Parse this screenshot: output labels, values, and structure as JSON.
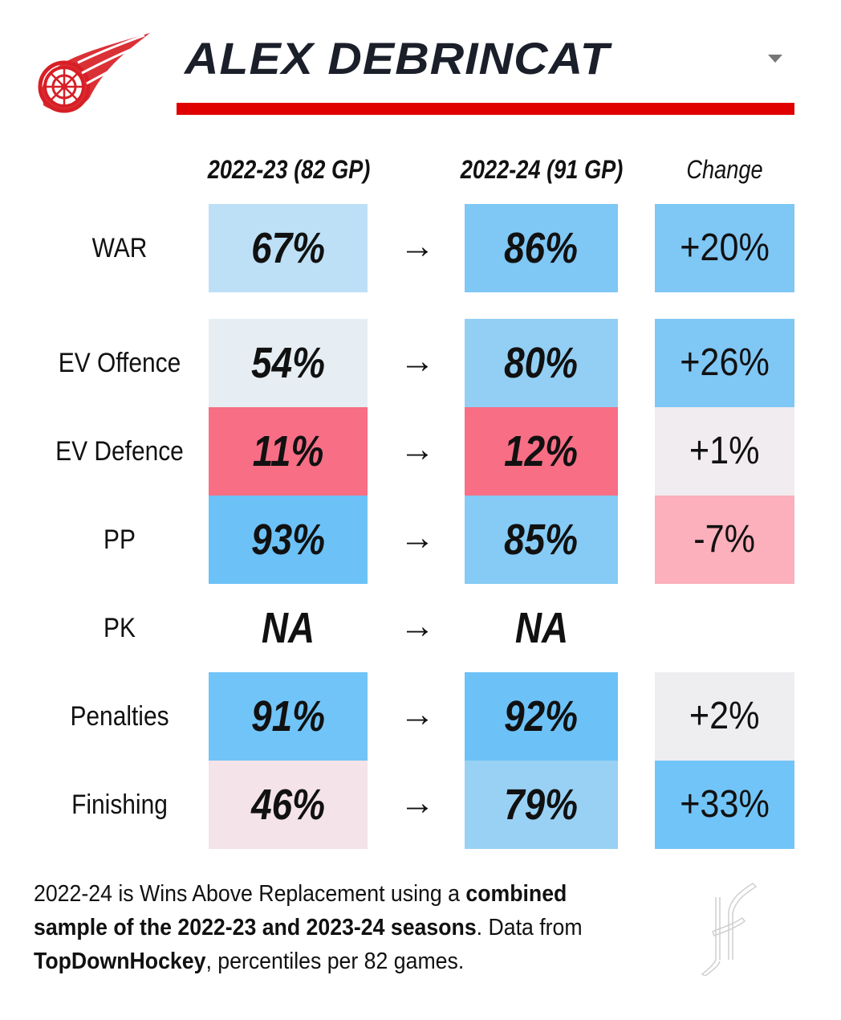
{
  "header": {
    "player_name": "ALEX DEBRINCAT",
    "team_logo": "red-wings-winged-wheel-logo",
    "accent_color": "#e00000",
    "title_color": "#1a1f2a"
  },
  "columns": {
    "season1": "2022-23 (82 GP)",
    "season2": "2022-24 (91 GP)",
    "change": "Change"
  },
  "arrow_glyph": "→",
  "rows": [
    {
      "label": "WAR",
      "season1": "67%",
      "season2": "86%",
      "change": "+20%",
      "color1": "#bde0f6",
      "color2": "#7fc7f5",
      "color3": "#7fc7f5"
    },
    {
      "label": "EV Offence",
      "season1": "54%",
      "season2": "80%",
      "change": "+26%",
      "color1": "#e6eef3",
      "color2": "#93cff4",
      "color3": "#7fc7f5"
    },
    {
      "label": "EV Defence",
      "season1": "11%",
      "season2": "12%",
      "change": "+1%",
      "color1": "#f76e85",
      "color2": "#f76e85",
      "color3": "#f1ecef"
    },
    {
      "label": "PP",
      "season1": "93%",
      "season2": "85%",
      "change": "-7%",
      "color1": "#6cc2f7",
      "color2": "#85cbf5",
      "color3": "#fbb0bc"
    },
    {
      "label": "PK",
      "season1": "NA",
      "season2": "NA",
      "change": "",
      "color1": "#ffffff",
      "color2": "#ffffff",
      "color3": "#ffffff"
    },
    {
      "label": "Penalties",
      "season1": "91%",
      "season2": "92%",
      "change": "+2%",
      "color1": "#71c4f7",
      "color2": "#6cc2f7",
      "color3": "#eeedf0"
    },
    {
      "label": "Finishing",
      "season1": "46%",
      "season2": "79%",
      "change": "+33%",
      "color1": "#f4e3e8",
      "color2": "#99d1f4",
      "color3": "#71c4f7"
    }
  ],
  "footnote": {
    "part1": "2022-24 is Wins Above Replacement using a ",
    "bold1": "combined sample of the 2022-23 and 2023-24 seasons",
    "part2": ". Data from ",
    "bold2": "TopDownHockey",
    "part3": ", percentiles per 82 games."
  },
  "signature": "hockey-stick-signature-logo"
}
